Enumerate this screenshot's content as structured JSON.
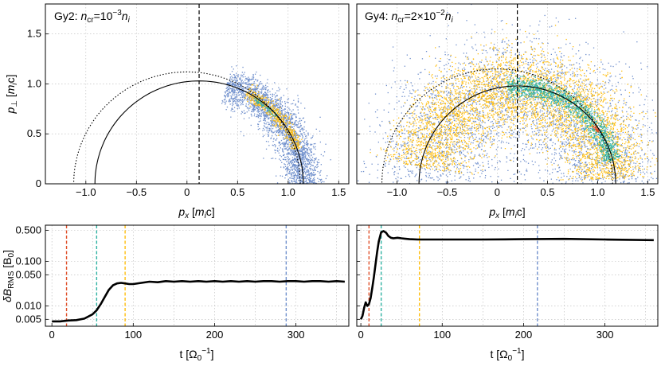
{
  "colors": {
    "blue": "#6f8fcc",
    "gold": "#ffbe0f",
    "teal": "#2fb2a3",
    "red": "#e0502a",
    "curve": "#000000"
  },
  "chart_data": [
    {
      "type": "scatter",
      "panel": "top-left",
      "title_prefix": "Gy2: ",
      "title_var": "n",
      "title_var_sub": "cr",
      "title_eq": "=10",
      "title_exp": "−3",
      "title_rhs": "n",
      "title_rhs_sub": "i",
      "xlabel_var": "p",
      "xlabel_sub": "x",
      "xlabel_unit_a": " [",
      "xlabel_unit_m": "m",
      "xlabel_unit_sub": "i",
      "xlabel_unit_b": "c]",
      "ylabel_var": "p",
      "ylabel_sub": "⊥",
      "ylabel_unit_a": " [",
      "ylabel_unit_m": "m",
      "ylabel_unit_sub": "i",
      "ylabel_unit_b": "c]",
      "xlim": [
        -1.4,
        1.6
      ],
      "ylim": [
        0,
        1.8
      ],
      "xticks": [
        "−1.0",
        "−0.5",
        "0",
        "0.5",
        "1.0",
        "1.5"
      ],
      "xtick_values": [
        -1.0,
        -0.5,
        0,
        0.5,
        1.0,
        1.5
      ],
      "yticks": [
        "0",
        "0.5",
        "1.0",
        "1.5"
      ],
      "ytick_values": [
        0,
        0.5,
        1.0,
        1.5
      ],
      "vline_x": 0.12,
      "solid_circle": {
        "center_x": 0.12,
        "radius": 1.03
      },
      "dotted_circle": {
        "center_x": 0,
        "radius": 1.12
      },
      "clouds": [
        {
          "name": "blue",
          "color": "#6f8fcc",
          "center_x": 0.12,
          "r_mean": 1.03,
          "r_spread": 0.09,
          "theta_deg": [
            -5,
            75
          ],
          "count": 2600
        },
        {
          "name": "gold",
          "color": "#ffbe0f",
          "center_x": 0.12,
          "r_mean": 1.03,
          "r_spread": 0.035,
          "theta_deg": [
            20,
            63
          ],
          "count": 500
        },
        {
          "name": "teal",
          "color": "#2fb2a3",
          "center_x": 0.12,
          "r_mean": 1.01,
          "r_spread": 0.012,
          "theta_deg": [
            42,
            58
          ],
          "count": 60
        }
      ]
    },
    {
      "type": "scatter",
      "panel": "top-right",
      "title_prefix": "Gy4: ",
      "title_var": "n",
      "title_var_sub": "cr",
      "title_eq": "=2×10",
      "title_exp": "−2",
      "title_rhs": "n",
      "title_rhs_sub": "i",
      "xlabel_var": "p",
      "xlabel_sub": "x",
      "xlabel_unit_a": " [",
      "xlabel_unit_m": "m",
      "xlabel_unit_sub": "i",
      "xlabel_unit_b": "c]",
      "xlim": [
        -1.4,
        1.6
      ],
      "ylim": [
        0,
        1.8
      ],
      "xticks": [
        "−1.0",
        "−0.5",
        "0",
        "0.5",
        "1.0",
        "1.5"
      ],
      "xtick_values": [
        -1.0,
        -0.5,
        0,
        0.5,
        1.0,
        1.5
      ],
      "vline_x": 0.2,
      "solid_circle": {
        "center_x": 0.2,
        "radius": 0.98
      },
      "dotted_circle": {
        "center_x": 0,
        "radius": 1.15
      },
      "clouds": [
        {
          "name": "blue",
          "color": "#6f8fcc",
          "center_x": 0.2,
          "r_mean": 0.97,
          "r_spread": 0.3,
          "theta_deg": [
            -2,
            178
          ],
          "count": 3200
        },
        {
          "name": "gold",
          "color": "#ffbe0f",
          "center_x": 0.2,
          "r_mean": 0.98,
          "r_spread": 0.2,
          "theta_deg": [
            3,
            170
          ],
          "count": 4200
        },
        {
          "name": "teal",
          "color": "#2fb2a3",
          "center_x": 0.2,
          "r_mean": 0.97,
          "r_spread": 0.05,
          "theta_deg": [
            14,
            96
          ],
          "count": 1300
        },
        {
          "name": "red",
          "color": "#e0502a",
          "center_x": 0.2,
          "r_mean": 0.96,
          "r_spread": 0.01,
          "theta_deg": [
            33,
            38
          ],
          "count": 40
        }
      ]
    },
    {
      "type": "line",
      "panel": "bottom-left",
      "yscale": "log",
      "xlabel": "t [Ω",
      "xlabel_sub": "0",
      "xlabel_sup": "−1",
      "xlabel_end": "]",
      "ylabel_var": "δB",
      "ylabel_sub": "RMS",
      "ylabel_unit": " [B",
      "ylabel_unit_sub": "0",
      "ylabel_unit_end": "]",
      "xlim": [
        -8,
        365
      ],
      "ylim": [
        0.0035,
        0.65
      ],
      "xticks": [
        "0",
        "100",
        "200",
        "300"
      ],
      "xtick_values": [
        0,
        100,
        200,
        300
      ],
      "yticks": [
        "0.005",
        "0.010",
        "0.050",
        "0.100",
        "0.500"
      ],
      "ytick_values": [
        0.005,
        0.01,
        0.05,
        0.1,
        0.5
      ],
      "vlines": [
        {
          "x": 18,
          "color": "#e0502a"
        },
        {
          "x": 55,
          "color": "#2fb2a3"
        },
        {
          "x": 90,
          "color": "#ffbe0f"
        },
        {
          "x": 288,
          "color": "#6f8fcc"
        }
      ],
      "x": [
        0,
        10,
        20,
        30,
        40,
        50,
        55,
        60,
        65,
        70,
        75,
        80,
        85,
        90,
        95,
        100,
        110,
        120,
        130,
        140,
        150,
        160,
        170,
        180,
        190,
        200,
        210,
        220,
        230,
        240,
        250,
        260,
        270,
        280,
        290,
        300,
        310,
        320,
        330,
        340,
        350,
        360
      ],
      "y": [
        0.0045,
        0.0045,
        0.0047,
        0.0048,
        0.0052,
        0.0065,
        0.008,
        0.011,
        0.016,
        0.023,
        0.029,
        0.032,
        0.033,
        0.032,
        0.031,
        0.031,
        0.033,
        0.035,
        0.034,
        0.036,
        0.035,
        0.036,
        0.035,
        0.036,
        0.035,
        0.036,
        0.035,
        0.036,
        0.035,
        0.036,
        0.035,
        0.036,
        0.036,
        0.035,
        0.036,
        0.036,
        0.035,
        0.036,
        0.036,
        0.035,
        0.036,
        0.035
      ]
    },
    {
      "type": "line",
      "panel": "bottom-right",
      "yscale": "log",
      "xlabel": "t [Ω",
      "xlabel_sub": "0",
      "xlabel_sup": "−1",
      "xlabel_end": "]",
      "xlim": [
        -5,
        365
      ],
      "ylim": [
        0.0035,
        0.65
      ],
      "xticks": [
        "0",
        "100",
        "200",
        "300"
      ],
      "xtick_values": [
        0,
        100,
        200,
        300
      ],
      "vlines": [
        {
          "x": 10,
          "color": "#e0502a"
        },
        {
          "x": 25,
          "color": "#2fb2a3"
        },
        {
          "x": 72,
          "color": "#ffbe0f"
        },
        {
          "x": 217,
          "color": "#6f8fcc"
        }
      ],
      "x": [
        0,
        2,
        4,
        6,
        8,
        10,
        12,
        14,
        16,
        18,
        20,
        22,
        25,
        28,
        31,
        34,
        37,
        40,
        45,
        50,
        60,
        70,
        80,
        100,
        150,
        200,
        250,
        300,
        360
      ],
      "y": [
        0.005,
        0.006,
        0.009,
        0.012,
        0.01,
        0.011,
        0.015,
        0.025,
        0.045,
        0.085,
        0.16,
        0.28,
        0.45,
        0.48,
        0.44,
        0.37,
        0.34,
        0.33,
        0.34,
        0.33,
        0.315,
        0.31,
        0.31,
        0.31,
        0.31,
        0.315,
        0.32,
        0.31,
        0.3
      ]
    }
  ]
}
